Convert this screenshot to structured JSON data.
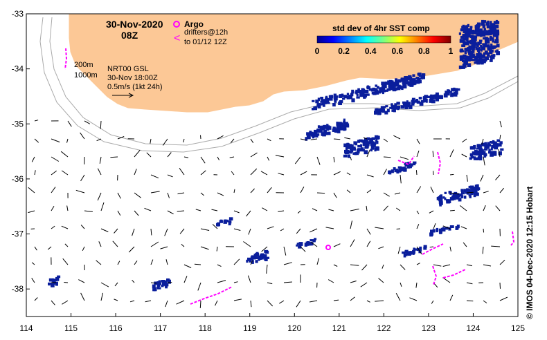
{
  "header": {
    "date": "30-Nov-2020",
    "time": "08Z"
  },
  "legend": {
    "argo_label": "Argo",
    "drifters_label": "drifters@12h",
    "drifters_to": "to 01/12 12Z",
    "argo_color": "#ff00ff",
    "drifter_color": "#ff00ff"
  },
  "contours": {
    "depth_1": "200m",
    "depth_2": "1000m"
  },
  "currents": {
    "source": "NRT00 GSL",
    "time": "30-Nov 18:00Z",
    "scale": "0.5m/s (1kt 24h)"
  },
  "colorbar": {
    "title": "std dev of 4hr SST comp",
    "ticks": [
      "0",
      "0.2",
      "0.4",
      "0.6",
      "0.8",
      "1"
    ],
    "min": 0,
    "max": 1
  },
  "axes": {
    "x_ticks": [
      "114",
      "115",
      "116",
      "117",
      "118",
      "119",
      "120",
      "121",
      "122",
      "123",
      "124",
      "125"
    ],
    "y_ticks": [
      "-33",
      "-34",
      "-35",
      "-36",
      "-37",
      "-38"
    ],
    "lon_range": [
      114,
      125
    ],
    "lat_range": [
      -38.5,
      -33
    ]
  },
  "credit": "© IMOS 04-Dec-2020 12:15 Hobart",
  "colors": {
    "land": "#fcc896",
    "sst_low": "#0a1e9c",
    "drifter": "#ff00ff"
  }
}
